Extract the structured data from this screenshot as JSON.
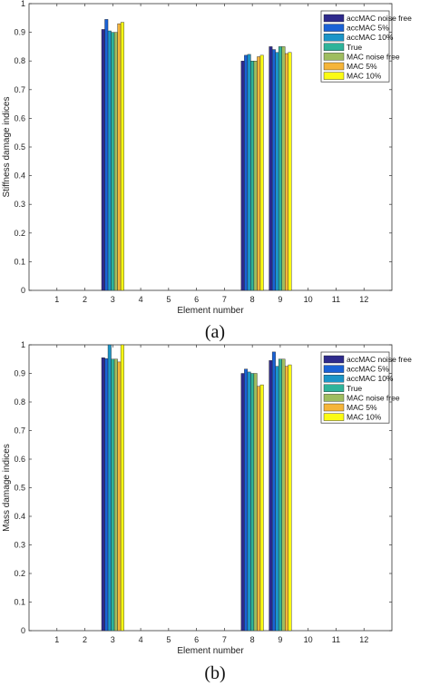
{
  "colors": {
    "series": [
      "#2e2a8c",
      "#1a62d6",
      "#1b95c8",
      "#2fb39a",
      "#9fbd5f",
      "#f5b53a",
      "#fbfb14"
    ],
    "axis": "#333333"
  },
  "chart_data": [
    {
      "type": "bar",
      "panel_label": "(a)",
      "xlabel": "Element number",
      "ylabel": "Stiffness damage indices",
      "categories": [
        "1",
        "2",
        "3",
        "4",
        "5",
        "6",
        "7",
        "8",
        "9",
        "10",
        "11",
        "12"
      ],
      "ylim": [
        0,
        1
      ],
      "yticks": [
        "0",
        "0.1",
        "0.2",
        "0.3",
        "0.4",
        "0.5",
        "0.6",
        "0.7",
        "0.8",
        "0.9",
        "1"
      ],
      "legend_position": "top-right",
      "grid": false,
      "series": [
        {
          "name": "accMAC noise free",
          "values": [
            0,
            0,
            0.91,
            0,
            0,
            0,
            0,
            0.8,
            0.85,
            0,
            0,
            0
          ]
        },
        {
          "name": "accMAC 5%",
          "values": [
            0,
            0,
            0.945,
            0,
            0,
            0,
            0,
            0.82,
            0.84,
            0,
            0,
            0
          ]
        },
        {
          "name": "accMAC 10%",
          "values": [
            0,
            0,
            0.905,
            0,
            0,
            0,
            0,
            0.823,
            0.83,
            0,
            0,
            0
          ]
        },
        {
          "name": "True",
          "values": [
            0,
            0,
            0.9,
            0,
            0,
            0,
            0,
            0.8,
            0.85,
            0,
            0,
            0
          ]
        },
        {
          "name": "MAC noise free",
          "values": [
            0,
            0,
            0.9,
            0,
            0,
            0,
            0,
            0.8,
            0.85,
            0,
            0,
            0
          ]
        },
        {
          "name": "MAC 5%",
          "values": [
            0,
            0,
            0.93,
            0,
            0,
            0,
            0,
            0.815,
            0.826,
            0,
            0,
            0
          ]
        },
        {
          "name": "MAC 10%",
          "values": [
            0,
            0,
            0.935,
            0,
            0,
            0,
            0,
            0.82,
            0.83,
            0,
            0,
            0
          ]
        }
      ]
    },
    {
      "type": "bar",
      "panel_label": "(b)",
      "xlabel": "Element number",
      "ylabel": "Mass damage indices",
      "categories": [
        "1",
        "2",
        "3",
        "4",
        "5",
        "6",
        "7",
        "8",
        "9",
        "10",
        "11",
        "12"
      ],
      "ylim": [
        0,
        1
      ],
      "yticks": [
        "0",
        "0.1",
        "0.2",
        "0.3",
        "0.4",
        "0.5",
        "0.6",
        "0.7",
        "0.8",
        "0.9",
        "1"
      ],
      "legend_position": "top-right",
      "grid": false,
      "series": [
        {
          "name": "accMAC noise free",
          "values": [
            0,
            0,
            0.955,
            0,
            0,
            0,
            0,
            0.9,
            0.945,
            0,
            0,
            0
          ]
        },
        {
          "name": "accMAC 5%",
          "values": [
            0,
            0,
            0.952,
            0,
            0,
            0,
            0,
            0.915,
            0.975,
            0,
            0,
            0
          ]
        },
        {
          "name": "accMAC 10%",
          "values": [
            0,
            0,
            1.0,
            0,
            0,
            0,
            0,
            0.905,
            0.925,
            0,
            0,
            0
          ]
        },
        {
          "name": "True",
          "values": [
            0,
            0,
            0.95,
            0,
            0,
            0,
            0,
            0.9,
            0.95,
            0,
            0,
            0
          ]
        },
        {
          "name": "MAC noise free",
          "values": [
            0,
            0,
            0.95,
            0,
            0,
            0,
            0,
            0.9,
            0.95,
            0,
            0,
            0
          ]
        },
        {
          "name": "MAC 5%",
          "values": [
            0,
            0,
            0.94,
            0,
            0,
            0,
            0,
            0.855,
            0.925,
            0,
            0,
            0
          ]
        },
        {
          "name": "MAC 10%",
          "values": [
            0,
            0,
            1.0,
            0,
            0,
            0,
            0,
            0.86,
            0.93,
            0,
            0,
            0
          ]
        }
      ]
    }
  ]
}
